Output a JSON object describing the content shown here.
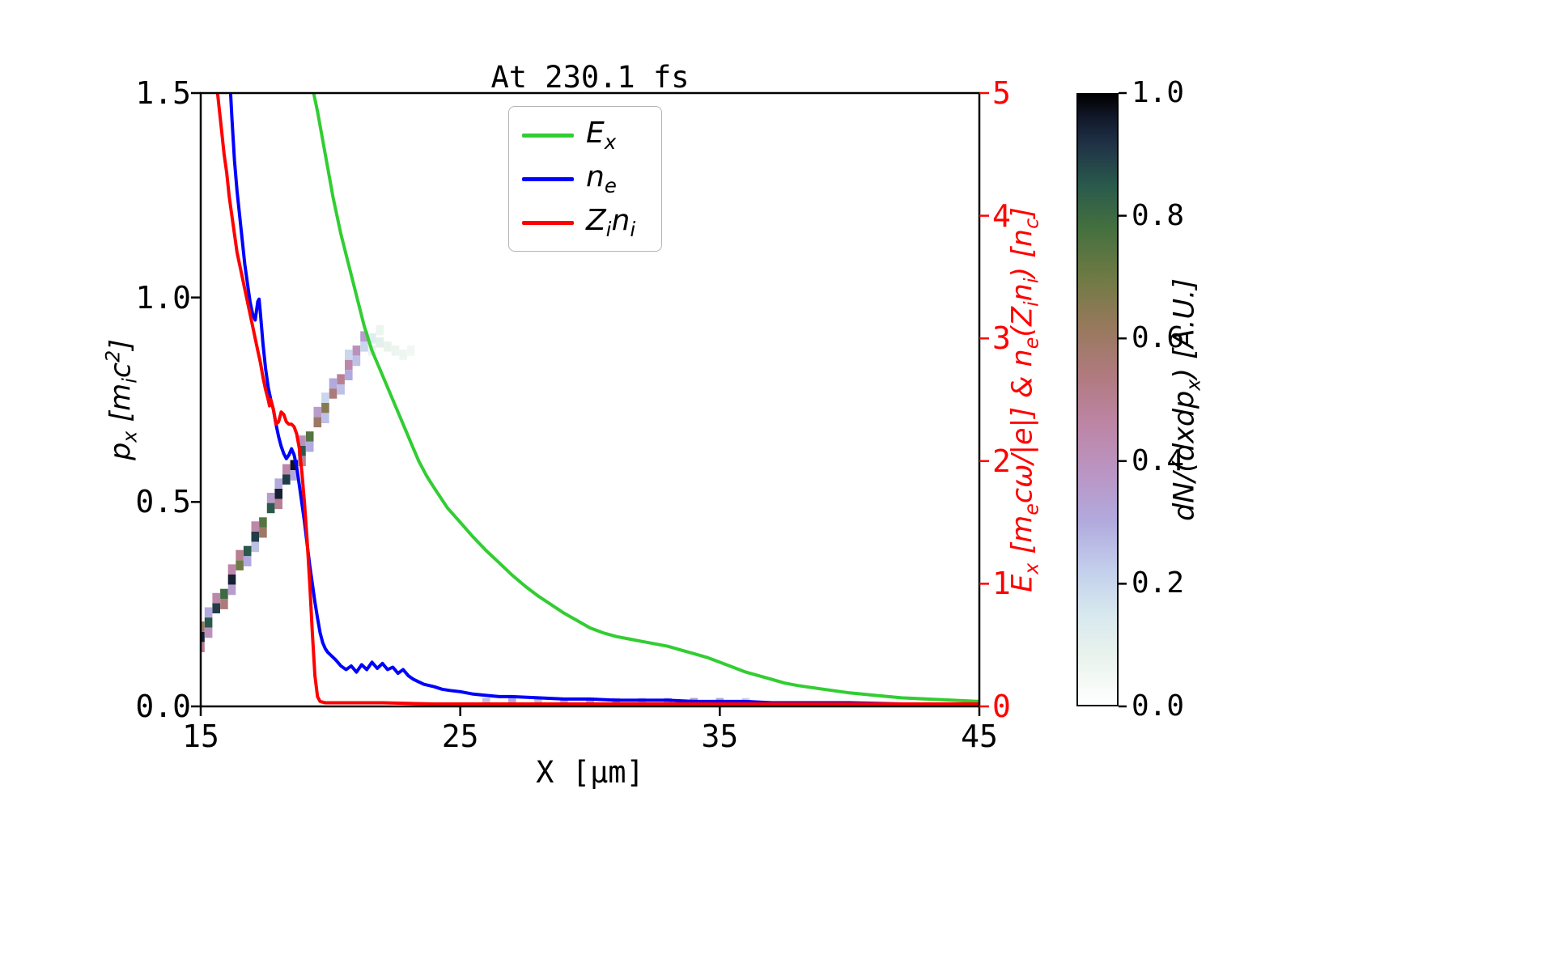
{
  "title": "At 230.1 fs",
  "axes": {
    "xlabel": "X [μm]",
    "ylabel_left": "p_x [m_ic^2]",
    "ylabel_right": "E_x [m_ecω/|e|] & n_e(Z_in_i) [n_c]",
    "x_ticks": [
      "15",
      "25",
      "35",
      "45"
    ],
    "y_left_ticks": [
      "0.0",
      "0.5",
      "1.0",
      "1.5"
    ],
    "y_right_ticks": [
      "0",
      "1",
      "2",
      "3",
      "4",
      "5"
    ],
    "x_range": [
      15,
      45
    ],
    "y_left_range": [
      0,
      1.5
    ],
    "y_right_range": [
      0,
      5
    ]
  },
  "colors": {
    "right_axis": "#ff0000",
    "frame": "#000000",
    "legend_border": "#b3b3b3"
  },
  "colorbar": {
    "label": "dN/(dxdp_x) [A.U.]",
    "ticks": [
      "0.0",
      "0.2",
      "0.4",
      "0.6",
      "0.8",
      "1.0"
    ],
    "colormap": "cubehelix_r",
    "stops": [
      [
        0.0,
        "#ffffff"
      ],
      [
        0.08,
        "#e9f3ec"
      ],
      [
        0.15,
        "#d7e8ef"
      ],
      [
        0.22,
        "#c3cfec"
      ],
      [
        0.3,
        "#b2aade"
      ],
      [
        0.38,
        "#ba95c4"
      ],
      [
        0.46,
        "#bd85a5"
      ],
      [
        0.54,
        "#b07a7f"
      ],
      [
        0.62,
        "#97795c"
      ],
      [
        0.7,
        "#6f7a44"
      ],
      [
        0.78,
        "#45703f"
      ],
      [
        0.85,
        "#2a5a4c"
      ],
      [
        0.92,
        "#1f3146"
      ],
      [
        0.96,
        "#121a2c"
      ],
      [
        1.0,
        "#000000"
      ]
    ]
  },
  "chart_data": {
    "type": "line+heatmap",
    "title": "At 230.1 fs",
    "xlabel": "X [μm]",
    "ylabel_left": "p_x [m_i c^2]",
    "ylabel_right": "E_x [m_e cω/|e|] & n_e(Z_i n_i) [n_c]",
    "xlim": [
      15,
      45
    ],
    "ylim_left": [
      0,
      1.5
    ],
    "ylim_right": [
      0,
      5
    ],
    "legend_position": "upper center",
    "series": [
      {
        "name": "E_x",
        "axis": "right",
        "color": "#32cd32",
        "points": [
          [
            19.35,
            5.0
          ],
          [
            19.5,
            4.85
          ],
          [
            19.8,
            4.5
          ],
          [
            20.1,
            4.15
          ],
          [
            20.4,
            3.85
          ],
          [
            20.7,
            3.6
          ],
          [
            21.0,
            3.35
          ],
          [
            21.3,
            3.1
          ],
          [
            21.6,
            2.9
          ],
          [
            21.9,
            2.75
          ],
          [
            22.2,
            2.6
          ],
          [
            22.5,
            2.45
          ],
          [
            22.8,
            2.3
          ],
          [
            23.1,
            2.15
          ],
          [
            23.4,
            2.0
          ],
          [
            23.7,
            1.88
          ],
          [
            24.0,
            1.78
          ],
          [
            24.5,
            1.62
          ],
          [
            25.0,
            1.5
          ],
          [
            25.5,
            1.38
          ],
          [
            26.0,
            1.27
          ],
          [
            26.5,
            1.17
          ],
          [
            27.0,
            1.07
          ],
          [
            27.5,
            0.98
          ],
          [
            28.0,
            0.9
          ],
          [
            28.5,
            0.83
          ],
          [
            29.0,
            0.76
          ],
          [
            29.5,
            0.7
          ],
          [
            30.0,
            0.64
          ],
          [
            30.5,
            0.6
          ],
          [
            31.0,
            0.57
          ],
          [
            31.5,
            0.55
          ],
          [
            32.0,
            0.53
          ],
          [
            32.5,
            0.51
          ],
          [
            33.0,
            0.49
          ],
          [
            33.5,
            0.46
          ],
          [
            34.0,
            0.43
          ],
          [
            34.5,
            0.4
          ],
          [
            35.0,
            0.36
          ],
          [
            35.5,
            0.32
          ],
          [
            36.0,
            0.28
          ],
          [
            36.5,
            0.25
          ],
          [
            37.0,
            0.22
          ],
          [
            37.5,
            0.19
          ],
          [
            38.0,
            0.17
          ],
          [
            39.0,
            0.14
          ],
          [
            40.0,
            0.11
          ],
          [
            41.0,
            0.09
          ],
          [
            42.0,
            0.07
          ],
          [
            43.0,
            0.06
          ],
          [
            44.0,
            0.05
          ],
          [
            45.0,
            0.04
          ]
        ]
      },
      {
        "name": "n_e",
        "axis": "right",
        "color": "#0000ff",
        "points": [
          [
            16.15,
            5.0
          ],
          [
            16.2,
            4.8
          ],
          [
            16.3,
            4.45
          ],
          [
            16.4,
            4.2
          ],
          [
            16.5,
            4.0
          ],
          [
            16.6,
            3.8
          ],
          [
            16.7,
            3.6
          ],
          [
            16.8,
            3.45
          ],
          [
            16.9,
            3.3
          ],
          [
            17.0,
            3.2
          ],
          [
            17.1,
            3.15
          ],
          [
            17.2,
            3.3
          ],
          [
            17.25,
            3.32
          ],
          [
            17.3,
            3.2
          ],
          [
            17.4,
            2.95
          ],
          [
            17.5,
            2.75
          ],
          [
            17.6,
            2.6
          ],
          [
            17.7,
            2.5
          ],
          [
            17.8,
            2.42
          ],
          [
            17.9,
            2.3
          ],
          [
            18.0,
            2.2
          ],
          [
            18.1,
            2.12
          ],
          [
            18.2,
            2.06
          ],
          [
            18.3,
            2.02
          ],
          [
            18.4,
            2.05
          ],
          [
            18.5,
            2.1
          ],
          [
            18.6,
            2.05
          ],
          [
            18.7,
            1.95
          ],
          [
            18.8,
            1.8
          ],
          [
            18.9,
            1.65
          ],
          [
            19.0,
            1.5
          ],
          [
            19.1,
            1.32
          ],
          [
            19.2,
            1.15
          ],
          [
            19.3,
            1.0
          ],
          [
            19.4,
            0.85
          ],
          [
            19.5,
            0.72
          ],
          [
            19.6,
            0.6
          ],
          [
            19.7,
            0.52
          ],
          [
            19.8,
            0.47
          ],
          [
            19.9,
            0.44
          ],
          [
            20.0,
            0.42
          ],
          [
            20.2,
            0.38
          ],
          [
            20.4,
            0.33
          ],
          [
            20.6,
            0.3
          ],
          [
            20.8,
            0.33
          ],
          [
            21.0,
            0.28
          ],
          [
            21.2,
            0.34
          ],
          [
            21.4,
            0.3
          ],
          [
            21.6,
            0.36
          ],
          [
            21.8,
            0.31
          ],
          [
            22.0,
            0.35
          ],
          [
            22.2,
            0.3
          ],
          [
            22.4,
            0.32
          ],
          [
            22.6,
            0.27
          ],
          [
            22.8,
            0.3
          ],
          [
            23.0,
            0.25
          ],
          [
            23.2,
            0.22
          ],
          [
            23.4,
            0.2
          ],
          [
            23.6,
            0.18
          ],
          [
            23.8,
            0.17
          ],
          [
            24.0,
            0.16
          ],
          [
            24.3,
            0.14
          ],
          [
            24.6,
            0.13
          ],
          [
            25.0,
            0.12
          ],
          [
            25.5,
            0.1
          ],
          [
            26.0,
            0.09
          ],
          [
            26.5,
            0.08
          ],
          [
            27.0,
            0.08
          ],
          [
            28.0,
            0.07
          ],
          [
            29.0,
            0.06
          ],
          [
            30.0,
            0.06
          ],
          [
            31.0,
            0.05
          ],
          [
            32.0,
            0.05
          ],
          [
            33.0,
            0.05
          ],
          [
            34.0,
            0.04
          ],
          [
            35.0,
            0.04
          ],
          [
            36.0,
            0.04
          ],
          [
            37.0,
            0.03
          ],
          [
            38.0,
            0.03
          ],
          [
            39.0,
            0.03
          ],
          [
            40.0,
            0.03
          ],
          [
            42.0,
            0.02
          ],
          [
            45.0,
            0.02
          ]
        ]
      },
      {
        "name": "Z_in_i",
        "axis": "right",
        "color": "#ff0000",
        "points": [
          [
            15.65,
            5.0
          ],
          [
            15.7,
            4.9
          ],
          [
            15.8,
            4.7
          ],
          [
            15.9,
            4.5
          ],
          [
            16.0,
            4.35
          ],
          [
            16.1,
            4.15
          ],
          [
            16.2,
            4.0
          ],
          [
            16.3,
            3.85
          ],
          [
            16.4,
            3.7
          ],
          [
            16.5,
            3.6
          ],
          [
            16.6,
            3.5
          ],
          [
            16.7,
            3.4
          ],
          [
            16.8,
            3.3
          ],
          [
            16.9,
            3.2
          ],
          [
            17.0,
            3.1
          ],
          [
            17.1,
            3.0
          ],
          [
            17.2,
            2.9
          ],
          [
            17.3,
            2.8
          ],
          [
            17.4,
            2.68
          ],
          [
            17.5,
            2.58
          ],
          [
            17.6,
            2.5
          ],
          [
            17.65,
            2.45
          ],
          [
            17.7,
            2.5
          ],
          [
            17.8,
            2.42
          ],
          [
            17.9,
            2.3
          ],
          [
            18.0,
            2.32
          ],
          [
            18.1,
            2.4
          ],
          [
            18.2,
            2.38
          ],
          [
            18.3,
            2.32
          ],
          [
            18.4,
            2.3
          ],
          [
            18.5,
            2.3
          ],
          [
            18.6,
            2.28
          ],
          [
            18.7,
            2.22
          ],
          [
            18.8,
            2.1
          ],
          [
            18.9,
            1.9
          ],
          [
            19.0,
            1.65
          ],
          [
            19.1,
            1.35
          ],
          [
            19.2,
            1.0
          ],
          [
            19.3,
            0.6
          ],
          [
            19.4,
            0.25
          ],
          [
            19.5,
            0.08
          ],
          [
            19.6,
            0.04
          ],
          [
            19.8,
            0.03
          ],
          [
            20.0,
            0.03
          ],
          [
            21.0,
            0.03
          ],
          [
            22.0,
            0.03
          ],
          [
            24.0,
            0.02
          ],
          [
            26.0,
            0.02
          ],
          [
            30.0,
            0.02
          ],
          [
            35.0,
            0.02
          ],
          [
            40.0,
            0.02
          ],
          [
            45.0,
            0.02
          ]
        ]
      }
    ],
    "heatmap": {
      "description": "electron phase-space density dN/(dxdp_x), left axis units",
      "cell_dx": 0.3,
      "cell_dpx": 0.025,
      "cells": [
        [
          15.0,
          0.17,
          0.95
        ],
        [
          15.3,
          0.205,
          0.85
        ],
        [
          15.6,
          0.24,
          0.9
        ],
        [
          15.9,
          0.275,
          0.8
        ],
        [
          16.2,
          0.31,
          0.95
        ],
        [
          16.5,
          0.345,
          0.7
        ],
        [
          16.8,
          0.38,
          0.85
        ],
        [
          17.1,
          0.415,
          0.9
        ],
        [
          17.4,
          0.45,
          0.75
        ],
        [
          17.7,
          0.485,
          0.85
        ],
        [
          18.0,
          0.52,
          0.95
        ],
        [
          18.3,
          0.555,
          0.9
        ],
        [
          18.6,
          0.59,
          0.97
        ],
        [
          18.9,
          0.625,
          0.85
        ],
        [
          19.2,
          0.66,
          0.75
        ],
        [
          19.5,
          0.695,
          0.6
        ],
        [
          19.8,
          0.73,
          0.65
        ],
        [
          20.1,
          0.765,
          0.55
        ],
        [
          20.4,
          0.8,
          0.5
        ],
        [
          20.7,
          0.835,
          0.45
        ],
        [
          21.0,
          0.87,
          0.4
        ],
        [
          21.3,
          0.905,
          0.35
        ],
        [
          15.0,
          0.145,
          0.5
        ],
        [
          15.0,
          0.195,
          0.6
        ],
        [
          15.3,
          0.18,
          0.4
        ],
        [
          15.6,
          0.265,
          0.45
        ],
        [
          15.9,
          0.25,
          0.55
        ],
        [
          16.2,
          0.285,
          0.35
        ],
        [
          16.5,
          0.37,
          0.5
        ],
        [
          16.8,
          0.355,
          0.3
        ],
        [
          17.1,
          0.44,
          0.45
        ],
        [
          17.4,
          0.425,
          0.6
        ],
        [
          17.7,
          0.51,
          0.35
        ],
        [
          18.0,
          0.495,
          0.5
        ],
        [
          18.3,
          0.58,
          0.45
        ],
        [
          18.6,
          0.565,
          0.3
        ],
        [
          18.9,
          0.65,
          0.4
        ],
        [
          19.2,
          0.635,
          0.3
        ],
        [
          19.5,
          0.72,
          0.35
        ],
        [
          19.8,
          0.705,
          0.25
        ],
        [
          20.1,
          0.79,
          0.3
        ],
        [
          20.4,
          0.775,
          0.25
        ],
        [
          20.7,
          0.86,
          0.2
        ],
        [
          21.0,
          0.845,
          0.25
        ],
        [
          21.3,
          0.88,
          0.2
        ],
        [
          15.3,
          0.23,
          0.3
        ],
        [
          16.2,
          0.335,
          0.45
        ],
        [
          17.1,
          0.39,
          0.25
        ],
        [
          18.0,
          0.545,
          0.3
        ],
        [
          18.9,
          0.6,
          0.5
        ],
        [
          19.8,
          0.755,
          0.2
        ],
        [
          20.7,
          0.81,
          0.3
        ],
        [
          21.6,
          0.9,
          0.12
        ],
        [
          21.9,
          0.89,
          0.1
        ],
        [
          22.2,
          0.88,
          0.08
        ],
        [
          22.5,
          0.87,
          0.07
        ],
        [
          22.8,
          0.86,
          0.06
        ],
        [
          23.1,
          0.87,
          0.05
        ],
        [
          21.6,
          0.87,
          0.08
        ],
        [
          21.9,
          0.92,
          0.07
        ],
        [
          26.0,
          0.008,
          0.25
        ],
        [
          27.0,
          0.008,
          0.3
        ],
        [
          28.0,
          0.008,
          0.25
        ],
        [
          29.0,
          0.008,
          0.3
        ],
        [
          30.0,
          0.008,
          0.35
        ],
        [
          31.0,
          0.008,
          0.3
        ],
        [
          32.0,
          0.008,
          0.25
        ],
        [
          33.0,
          0.008,
          0.3
        ],
        [
          34.0,
          0.008,
          0.35
        ],
        [
          35.0,
          0.008,
          0.3
        ],
        [
          36.0,
          0.008,
          0.2
        ]
      ]
    }
  }
}
